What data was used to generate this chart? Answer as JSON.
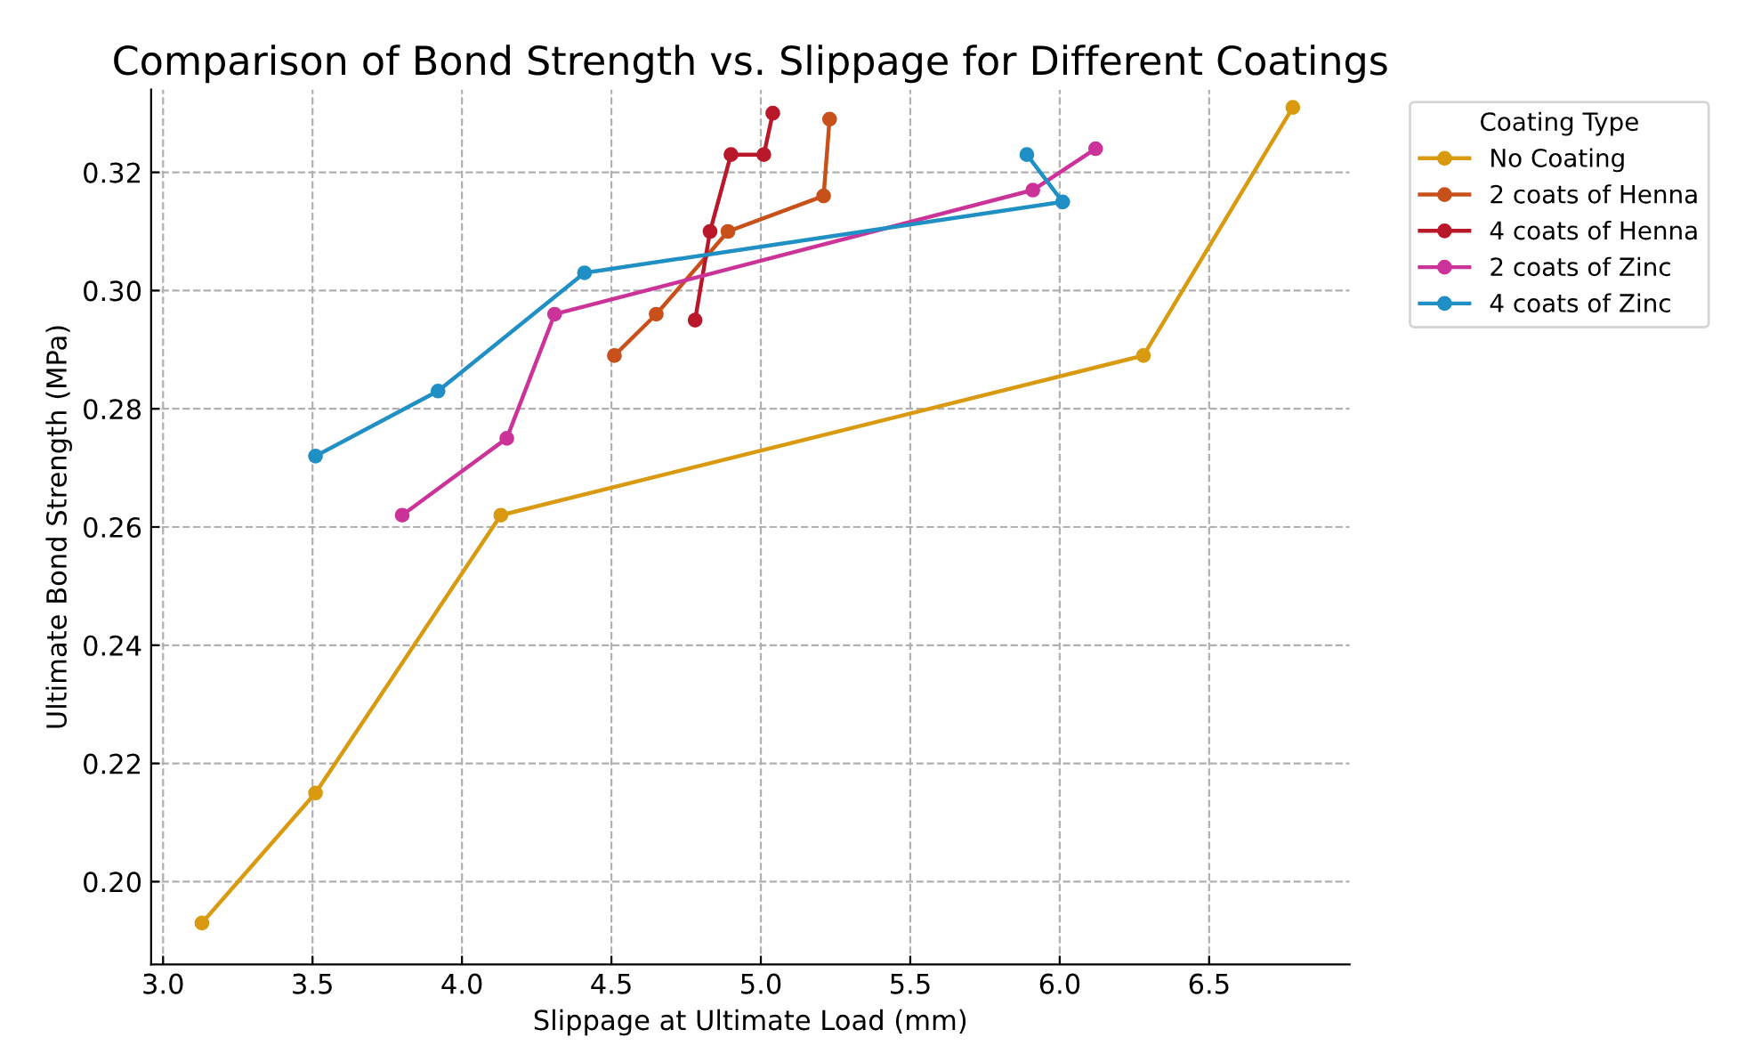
{
  "chart_data": {
    "type": "line",
    "title": "Comparison of Bond Strength vs. Slippage for Different Coatings",
    "xlabel": "Slippage at Ultimate Load (mm)",
    "ylabel": "Ultimate Bond Strength (MPa)",
    "legend_title": "Coating Type",
    "legend": "top right",
    "grid": true,
    "marker": "circle",
    "line_style": "solid",
    "xlim": [
      2.96,
      6.97
    ],
    "xticks": [
      {
        "value": 3.0,
        "label": "3.0"
      },
      {
        "value": 3.5,
        "label": "3.5"
      },
      {
        "value": 4.0,
        "label": "4.0"
      },
      {
        "value": 4.5,
        "label": "4.5"
      },
      {
        "value": 5.0,
        "label": "5.0"
      },
      {
        "value": 5.5,
        "label": "5.5"
      },
      {
        "value": 6.0,
        "label": "6.0"
      },
      {
        "value": 6.5,
        "label": "6.5"
      }
    ],
    "ylim": [
      0.186,
      0.334
    ],
    "yticks": [
      {
        "value": 0.2,
        "label": "0.20"
      },
      {
        "value": 0.22,
        "label": "0.22"
      },
      {
        "value": 0.24,
        "label": "0.24"
      },
      {
        "value": 0.26,
        "label": "0.26"
      },
      {
        "value": 0.28,
        "label": "0.28"
      },
      {
        "value": 0.3,
        "label": "0.30"
      },
      {
        "value": 0.32,
        "label": "0.32"
      }
    ],
    "series": [
      {
        "name": "No Coating",
        "color": "#d99a0f",
        "x": [
          3.13,
          3.51,
          4.13,
          6.28,
          6.78
        ],
        "values": [
          0.193,
          0.215,
          0.262,
          0.289,
          0.331
        ]
      },
      {
        "name": "2 coats of Henna",
        "color": "#c8501a",
        "x": [
          4.51,
          4.65,
          4.89,
          5.21,
          5.23
        ],
        "values": [
          0.289,
          0.296,
          0.31,
          0.316,
          0.329
        ]
      },
      {
        "name": "4 coats of Henna",
        "color": "#b8182a",
        "x": [
          4.78,
          4.83,
          4.9,
          5.01,
          5.04
        ],
        "values": [
          0.295,
          0.31,
          0.323,
          0.323,
          0.33
        ]
      },
      {
        "name": "2 coats of Zinc",
        "color": "#cc3399",
        "x": [
          3.8,
          4.15,
          4.31,
          5.91,
          6.12
        ],
        "values": [
          0.262,
          0.275,
          0.296,
          0.317,
          0.324
        ]
      },
      {
        "name": "4 coats of Zinc",
        "color": "#1f8fc4",
        "x": [
          3.51,
          3.92,
          4.41,
          6.01,
          5.89
        ],
        "values": [
          0.272,
          0.283,
          0.303,
          0.315,
          0.323
        ]
      }
    ]
  }
}
